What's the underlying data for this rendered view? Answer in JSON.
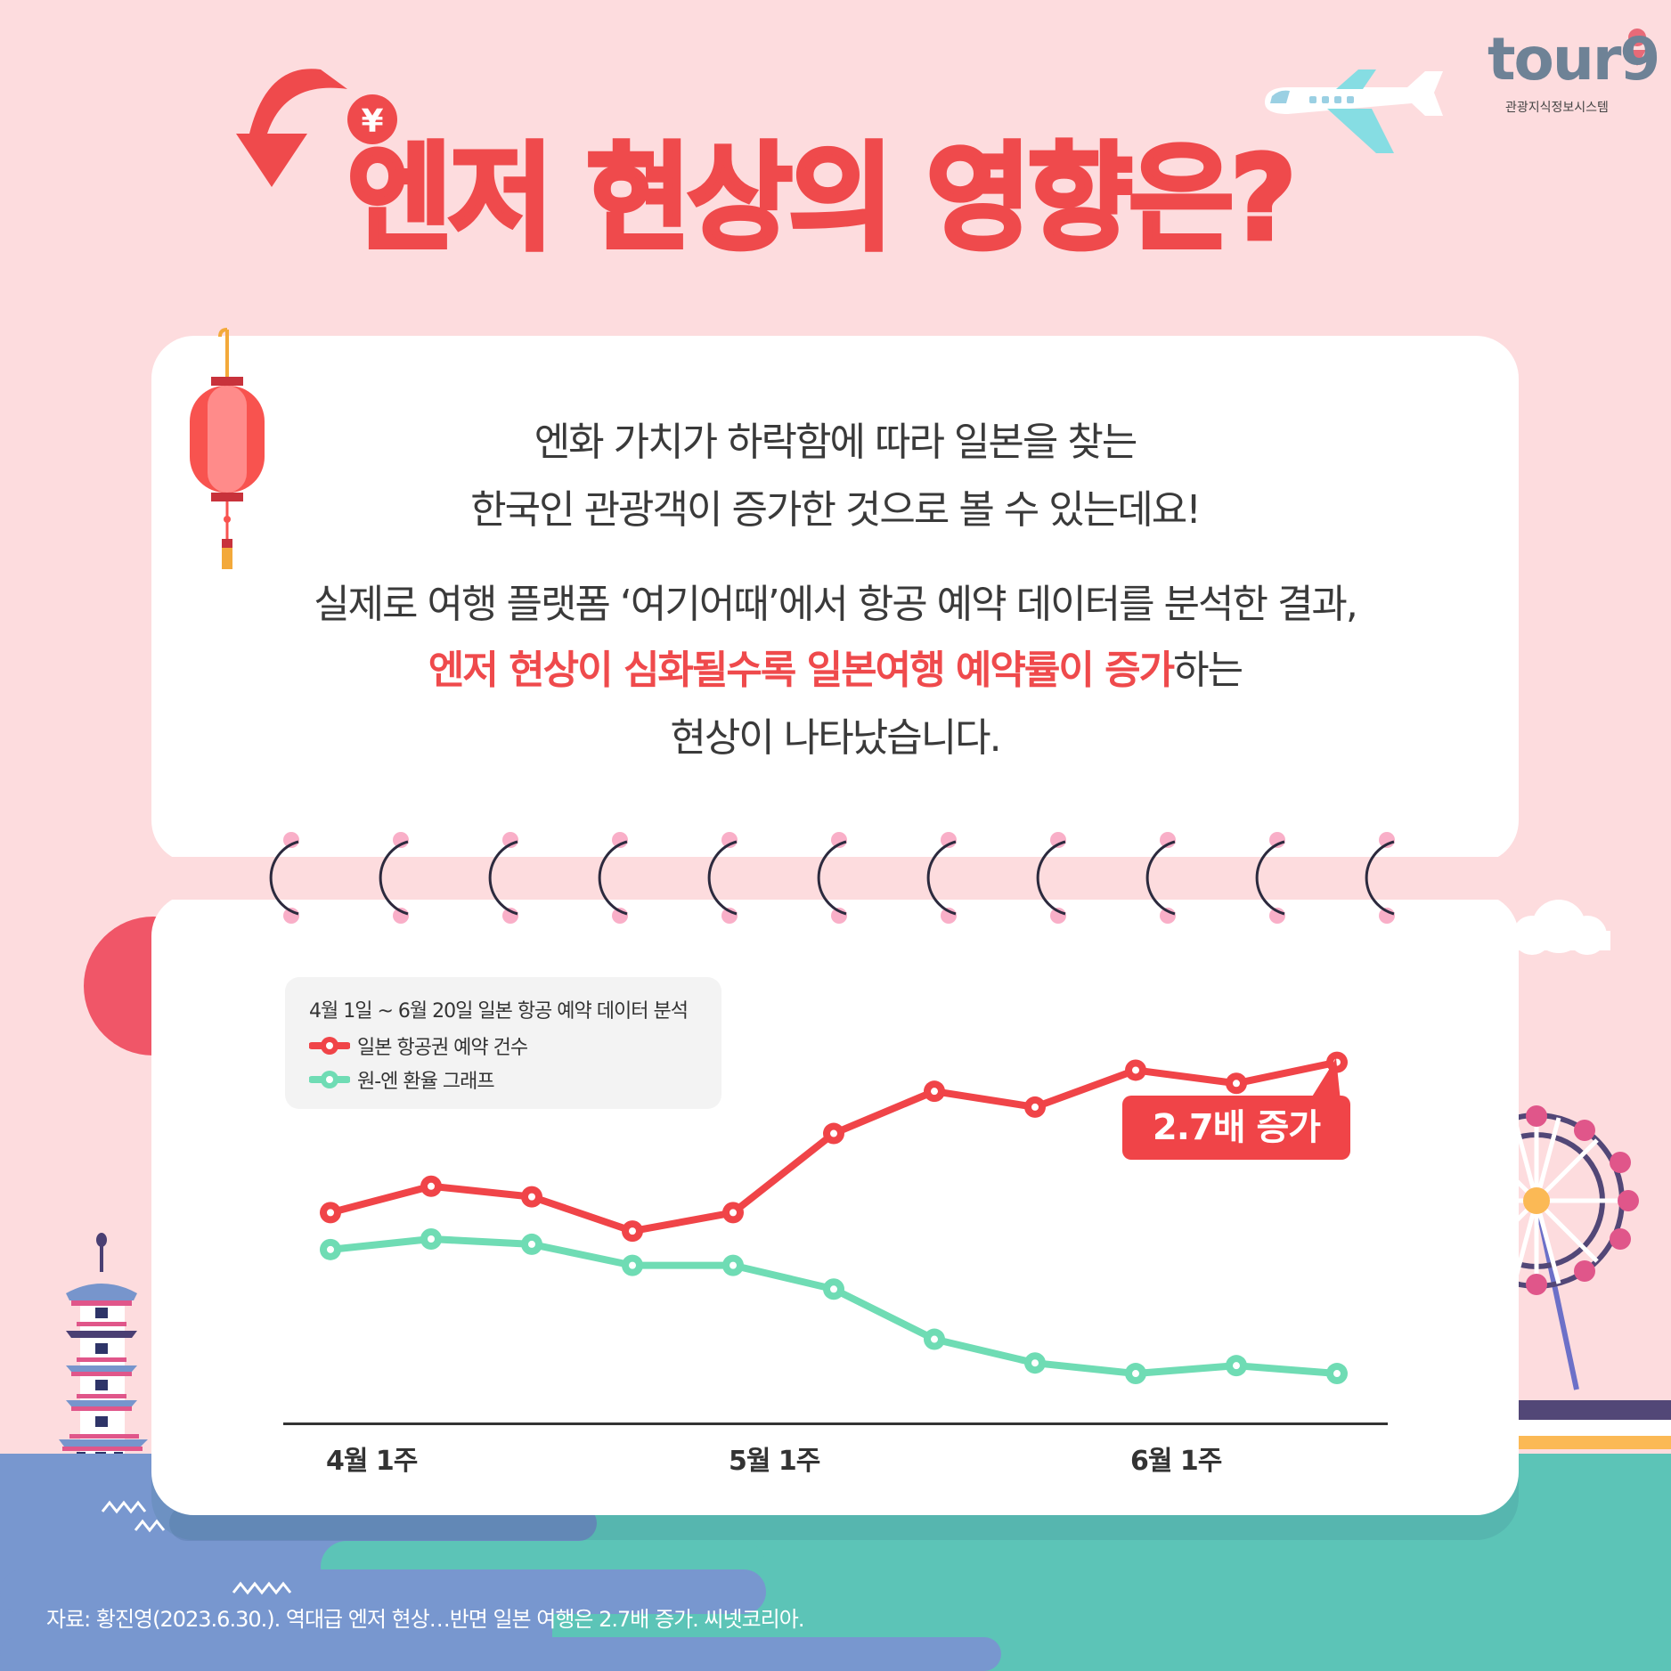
{
  "header": {
    "title": "엔저 현상의 영향은?",
    "logo": {
      "text": "tour9",
      "subtitle": "관광지식정보시스템"
    }
  },
  "intro": {
    "line1": "엔화 가치가 하락함에 따라 일본을 찾는",
    "line2": "한국인 관광객이 증가한 것으로 볼 수 있는데요!",
    "line3": "실제로 여행 플랫폼 ‘여기어때’에서 항공 예약 데이터를 분석한 결과,",
    "line4_highlight": "엔저 현상이 심화될수록 일본여행 예약률이 증가",
    "line4_rest": "하는",
    "line5": "현상이 나타났습니다."
  },
  "chart_data": {
    "type": "line",
    "title": "4월 1일 ~ 6월 20일 일본 항공 예약 데이터 분석",
    "xlabel": "",
    "ylabel": "",
    "x_tick_labels": [
      "4월 1주",
      "5월 1주",
      "6월 1주"
    ],
    "x": [
      1,
      2,
      3,
      4,
      5,
      6,
      7,
      8,
      9,
      10,
      11
    ],
    "grid": false,
    "legend_position": "top-left",
    "series": [
      {
        "name": "일본 항공권 예약 건수",
        "color": "#f04448",
        "values": [
          62,
          72,
          68,
          55,
          62,
          92,
          108,
          102,
          116,
          111,
          119
        ]
      },
      {
        "name": "원-엔 환율 그래프",
        "color": "#6fdcb4",
        "values": [
          48,
          52,
          50,
          42,
          42,
          33,
          14,
          5,
          1,
          4,
          1
        ]
      }
    ],
    "annotation": "2.7배 증가",
    "ylim": [
      0,
      130
    ]
  },
  "chart": {
    "legend_title": "4월 1일 ~ 6월 20일 일본 항공 예약 데이터 분석",
    "series_labels": [
      "일본 항공권 예약 건수",
      "원-엔 환율 그래프"
    ],
    "xticks": [
      "4월 1주",
      "5월 1주",
      "6월 1주"
    ],
    "callout": "2.7배 증가",
    "colors": {
      "red": "#f04448",
      "teal": "#6fdcb4"
    }
  },
  "footer": {
    "source": "자료: 황진영(2023.6.30.). 역대급 엔저 현상…반면 일본 여행은 2.7배 증가. 씨넷코리아."
  }
}
